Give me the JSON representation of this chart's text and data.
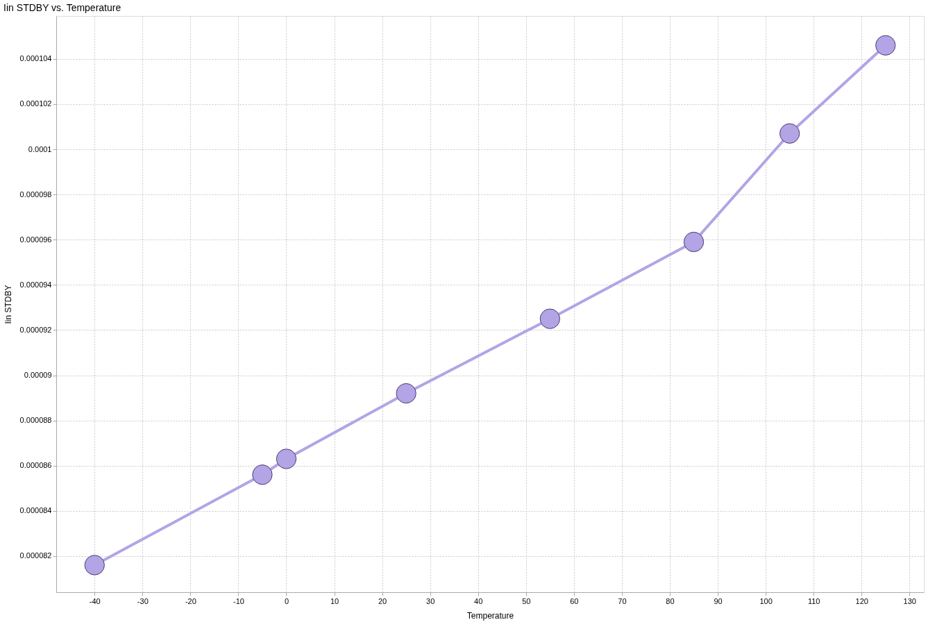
{
  "chart_data": {
    "type": "line",
    "title": "Iin STDBY vs. Temperature",
    "xlabel": "Temperature",
    "ylabel": "Iin STDBY",
    "x": [
      -40,
      -5,
      0,
      25,
      55,
      85,
      105,
      125
    ],
    "series": [
      {
        "color": "#b3a4e6",
        "values": [
          8.16e-05,
          8.56e-05,
          8.63e-05,
          8.92e-05,
          9.25e-05,
          9.59e-05,
          0.0001007,
          0.0001046
        ]
      }
    ],
    "xlim": [
      -48,
      133
    ],
    "xticks": [
      -40,
      -30,
      -20,
      -10,
      0,
      10,
      20,
      30,
      40,
      50,
      60,
      70,
      80,
      90,
      100,
      110,
      120,
      130
    ],
    "ylim": [
      8.04e-05,
      0.0001059
    ],
    "yticks": [
      {
        "value": 8.2e-05,
        "label": "0.000082"
      },
      {
        "value": 8.4e-05,
        "label": "0.000084"
      },
      {
        "value": 8.6e-05,
        "label": "0.000086"
      },
      {
        "value": 8.8e-05,
        "label": "0.000088"
      },
      {
        "value": 9e-05,
        "label": "0.00009"
      },
      {
        "value": 9.2e-05,
        "label": "0.000092"
      },
      {
        "value": 9.4e-05,
        "label": "0.000094"
      },
      {
        "value": 9.6e-05,
        "label": "0.000096"
      },
      {
        "value": 9.8e-05,
        "label": "0.000098"
      },
      {
        "value": 0.0001,
        "label": "0.0001"
      },
      {
        "value": 0.000102,
        "label": "0.000102"
      },
      {
        "value": 0.000104,
        "label": "0.000104"
      }
    ],
    "grid": true,
    "marker": "circle",
    "line_style": "solid"
  }
}
